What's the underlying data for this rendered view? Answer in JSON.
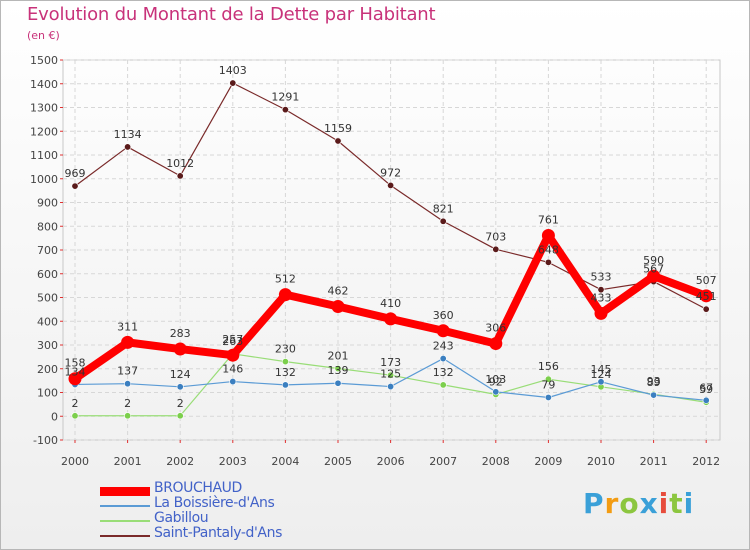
{
  "header": {
    "title": "Evolution du Montant de la Dette par Habitant",
    "subtitle": "(en €)"
  },
  "logo": {
    "text": "Proxiti"
  },
  "chart_data": {
    "type": "line",
    "title": "Evolution du Montant de la Dette par Habitant",
    "subtitle": "(en €)",
    "xlabel": "",
    "ylabel": "",
    "x": [
      "2000",
      "2001",
      "2002",
      "2003",
      "2004",
      "2005",
      "2006",
      "2007",
      "2008",
      "2009",
      "2010",
      "2011",
      "2012"
    ],
    "ylim": [
      -100,
      1500
    ],
    "yticks": [
      -100,
      0,
      100,
      200,
      300,
      400,
      500,
      600,
      700,
      800,
      900,
      1000,
      1100,
      1200,
      1300,
      1400,
      1500
    ],
    "grid": true,
    "legend_position": "bottom-left",
    "series": [
      {
        "name": "BROUCHAUD",
        "color": "#ff0000",
        "values": [
          158,
          311,
          283,
          257,
          512,
          462,
          410,
          360,
          306,
          761,
          433,
          590,
          507
        ],
        "labels": [
          "158",
          "311",
          "283",
          "257",
          "512",
          "462",
          "410",
          "360",
          "306",
          "761",
          "433",
          "590",
          "507"
        ]
      },
      {
        "name": "La Boissière-d'Ans",
        "color": "#5b9bd5",
        "values": [
          134,
          137,
          124,
          146,
          132,
          139,
          125,
          243,
          103,
          79,
          145,
          89,
          67
        ],
        "labels": [
          "134",
          "137",
          "124",
          "146",
          "132",
          "139",
          "125",
          "243",
          "103",
          "79",
          "145",
          "89",
          "67"
        ]
      },
      {
        "name": "Gabillou",
        "color": "#99dd77",
        "values": [
          2,
          2,
          2,
          263,
          230,
          201,
          173,
          132,
          92,
          156,
          124,
          93,
          59
        ],
        "labels": [
          "2",
          "2",
          "2",
          "263",
          "230",
          "201",
          "173",
          "132",
          "92",
          "156",
          "124",
          "93",
          "59"
        ]
      },
      {
        "name": "Saint-Pantaly-d'Ans",
        "color": "#7a2a2a",
        "values": [
          969,
          1134,
          1012,
          1403,
          1291,
          1159,
          972,
          821,
          703,
          648,
          533,
          567,
          451
        ],
        "labels": [
          "969",
          "1134",
          "1012",
          "1403",
          "1291",
          "1159",
          "972",
          "821",
          "703",
          "648",
          "533",
          "567",
          "451"
        ]
      }
    ]
  }
}
